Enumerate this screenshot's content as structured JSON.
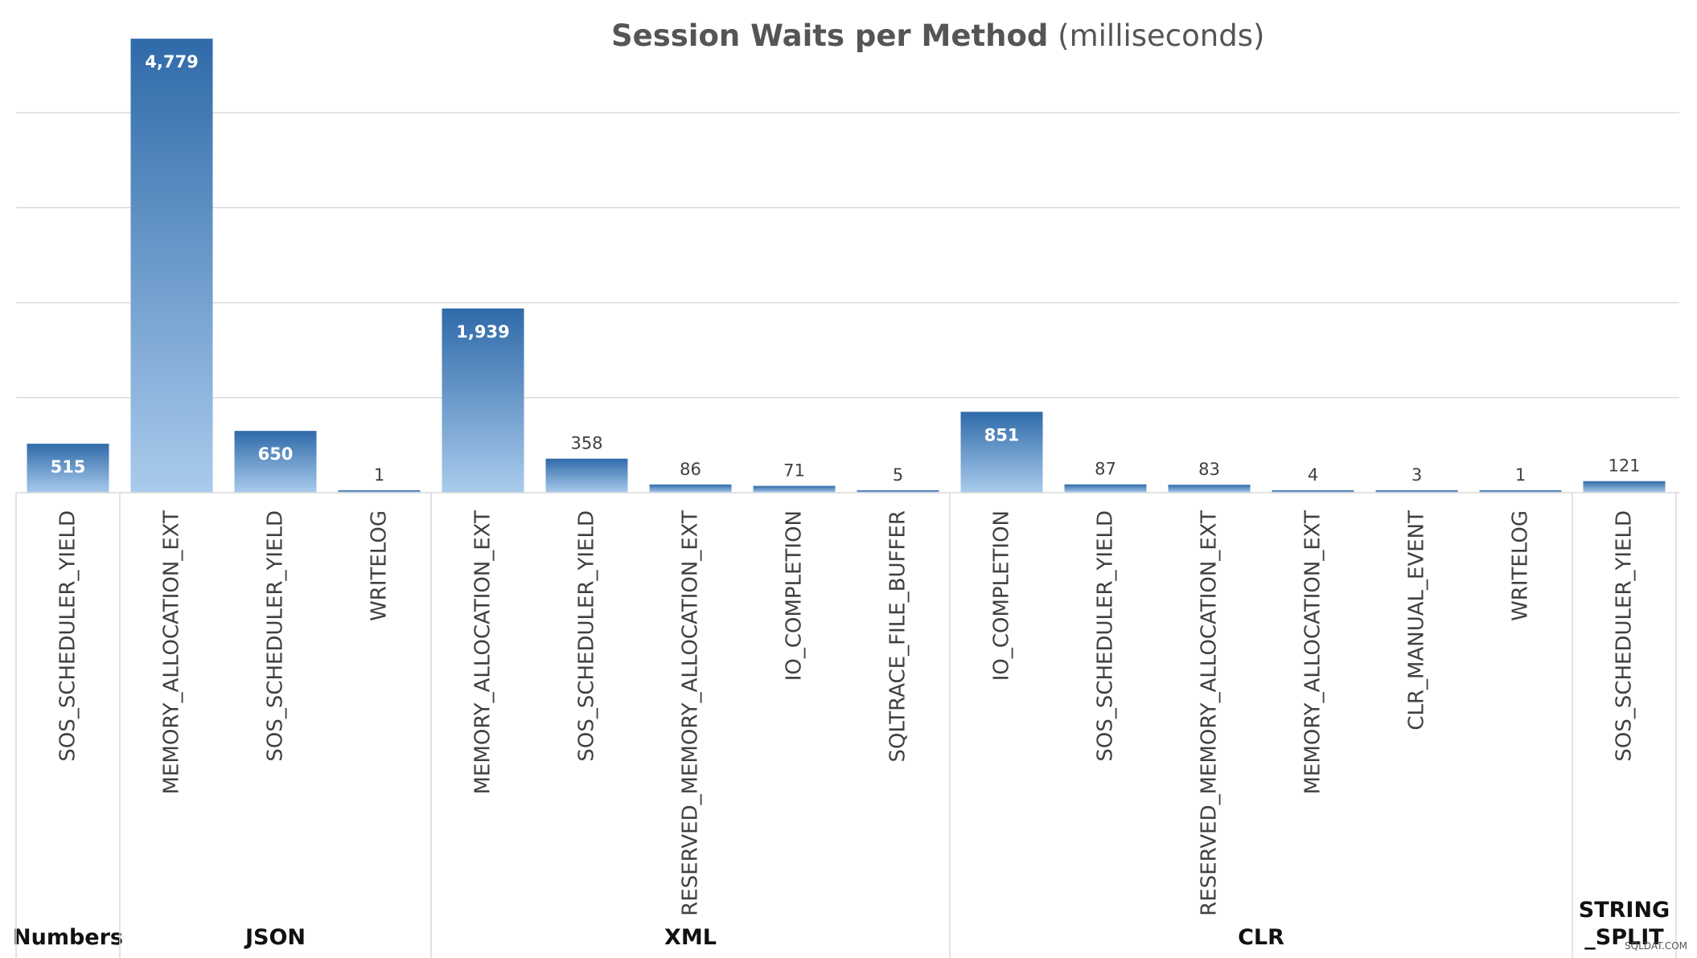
{
  "chart_data": {
    "type": "bar",
    "title": "Session Waits per Method",
    "subtitle": "(milliseconds)",
    "groups": [
      {
        "name": "Numbers",
        "bars": [
          {
            "category": "SOS_SCHEDULER_YIELD",
            "value": 515,
            "label": "515"
          }
        ]
      },
      {
        "name": "JSON",
        "bars": [
          {
            "category": "MEMORY_ALLOCATION_EXT",
            "value": 4779,
            "label": "4,779"
          },
          {
            "category": "SOS_SCHEDULER_YIELD",
            "value": 650,
            "label": "650"
          },
          {
            "category": "WRITELOG",
            "value": 1,
            "label": "1"
          }
        ]
      },
      {
        "name": "XML",
        "bars": [
          {
            "category": "MEMORY_ALLOCATION_EXT",
            "value": 1939,
            "label": "1,939"
          },
          {
            "category": "SOS_SCHEDULER_YIELD",
            "value": 358,
            "label": "358"
          },
          {
            "category": "RESERVED_MEMORY_ALLOCATION_EXT",
            "value": 86,
            "label": "86"
          },
          {
            "category": "IO_COMPLETION",
            "value": 71,
            "label": "71"
          },
          {
            "category": "SQLTRACE_FILE_BUFFER",
            "value": 5,
            "label": "5"
          }
        ]
      },
      {
        "name": "CLR",
        "bars": [
          {
            "category": "IO_COMPLETION",
            "value": 851,
            "label": "851"
          },
          {
            "category": "SOS_SCHEDULER_YIELD",
            "value": 87,
            "label": "87"
          },
          {
            "category": "RESERVED_MEMORY_ALLOCATION_EXT",
            "value": 83,
            "label": "83"
          },
          {
            "category": "MEMORY_ALLOCATION_EXT",
            "value": 4,
            "label": "4"
          },
          {
            "category": "CLR_MANUAL_EVENT",
            "value": 3,
            "label": "3"
          },
          {
            "category": "WRITELOG",
            "value": 1,
            "label": "1"
          }
        ]
      },
      {
        "name": "STRING_SPLIT",
        "display_lines": [
          "STRING",
          "_SPLIT"
        ],
        "bars": [
          {
            "category": "SOS_SCHEDULER_YIELD",
            "value": 121,
            "label": "121"
          }
        ]
      }
    ],
    "ylim": [
      0,
      5000
    ],
    "grid_step": 1000,
    "grid": true,
    "legend": "none",
    "bar_color_top": "#2f6aa9",
    "bar_color_bottom": "#a9cbec",
    "grid_color": "#d9d9d9",
    "text_color": "#404040"
  },
  "watermark": "SQLDAT.COM"
}
